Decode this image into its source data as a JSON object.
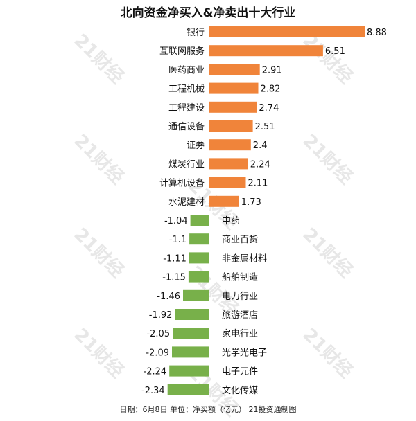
{
  "chart_data": {
    "type": "bar",
    "orientation": "horizontal",
    "title": "北向资金净买入&净卖出十大行业",
    "note": "日期：6月8日 单位：净买额（亿元） 21投资通制图",
    "watermark": "21财经",
    "colors": {
      "positive": "#f0843a",
      "negative": "#78b04a"
    },
    "categories": [
      "银行",
      "互联网服务",
      "医药商业",
      "工程机械",
      "工程建设",
      "通信设备",
      "证券",
      "煤炭行业",
      "计算机设备",
      "水泥建材",
      "中药",
      "商业百货",
      "非金属材料",
      "船舶制造",
      "电力行业",
      "旅游酒店",
      "家电行业",
      "光学光电子",
      "电子元件",
      "文化传媒"
    ],
    "value_labels": [
      "8.88",
      "6.51",
      "2.91",
      "2.82",
      "2.74",
      "2.51",
      "2.4",
      "2.24",
      "2.11",
      "1.73",
      "-1.04",
      "-1.1",
      "-1.11",
      "-1.15",
      "-1.46",
      "-1.92",
      "-2.05",
      "-2.09",
      "-2.24",
      "-2.34"
    ],
    "values": [
      8.88,
      6.51,
      2.91,
      2.82,
      2.74,
      2.51,
      2.4,
      2.24,
      2.11,
      1.73,
      -1.04,
      -1.1,
      -1.11,
      -1.15,
      -1.46,
      -1.92,
      -2.05,
      -2.09,
      -2.24,
      -2.34
    ]
  }
}
